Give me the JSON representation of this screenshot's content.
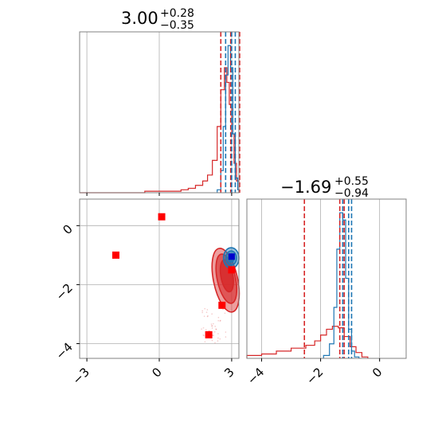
{
  "chart_data": {
    "type": "corner",
    "parameters": [
      {
        "title_value": "3.00",
        "title_plus": "+0.28",
        "title_minus": "−0.35",
        "range": [
          -3.3,
          3.3
        ],
        "tick_labels": [
          "−3",
          "0",
          "3"
        ],
        "tick_values": [
          -3,
          0,
          3
        ]
      },
      {
        "title_value": "−1.69",
        "title_plus": "+0.55",
        "title_minus": "−0.94",
        "range": [
          -4.5,
          0.9
        ],
        "tick_labels": [
          "−4",
          "−2",
          "0"
        ],
        "tick_values": [
          -4,
          -2,
          0
        ]
      }
    ],
    "colors": {
      "red": "#d62728",
      "blue": "#1f77b4",
      "marker": "#ff0000",
      "truth": "#0000cc"
    },
    "histograms": {
      "param1_red": {
        "bins": [
          -3.3,
          -0.6,
          0.9,
          1.2,
          1.5,
          1.8,
          2.0,
          2.2,
          2.4,
          2.55,
          2.7,
          2.8,
          2.9,
          3.0,
          3.1,
          3.2,
          3.3
        ],
        "heights": [
          0,
          0.01,
          0.02,
          0.03,
          0.05,
          0.08,
          0.12,
          0.22,
          0.45,
          0.7,
          0.85,
          0.75,
          0.6,
          0.4,
          0.2,
          0.08
        ]
      },
      "param1_blue": {
        "bins": [
          2.4,
          2.55,
          2.65,
          2.75,
          2.85,
          2.95,
          3.05,
          3.15,
          3.25,
          3.3
        ],
        "heights": [
          0.02,
          0.15,
          0.45,
          0.8,
          1.0,
          0.85,
          0.4,
          0.1,
          0.02
        ]
      },
      "param2_red": {
        "bins": [
          -4.5,
          -4.0,
          -3.5,
          -3.0,
          -2.5,
          -2.2,
          -2.0,
          -1.8,
          -1.6,
          -1.4,
          -1.2,
          -1.0,
          -0.8,
          -0.6,
          -0.4
        ],
        "heights": [
          0.02,
          0.03,
          0.05,
          0.07,
          0.09,
          0.12,
          0.16,
          0.2,
          0.22,
          0.21,
          0.15,
          0.08,
          0.04,
          0.01
        ]
      },
      "param2_blue": {
        "bins": [
          -1.9,
          -1.7,
          -1.55,
          -1.45,
          -1.35,
          -1.25,
          -1.15,
          -1.05,
          -0.95,
          -0.85,
          -0.7
        ],
        "heights": [
          0.02,
          0.1,
          0.35,
          0.75,
          1.0,
          0.95,
          0.55,
          0.2,
          0.05,
          0.01
        ]
      }
    },
    "quantile_lines": {
      "param1_red": [
        2.55,
        2.96,
        3.33
      ],
      "param1_blue": [
        2.75,
        3.0,
        3.15
      ],
      "param2_red": [
        -2.55,
        -1.35,
        -1.2
      ],
      "param2_blue": [
        -1.25,
        -1.05,
        -0.95
      ]
    },
    "scatter_markers_2d": [
      {
        "x": 0.1,
        "y": 0.3
      },
      {
        "x": -1.8,
        "y": -1.0
      },
      {
        "x": 2.05,
        "y": -3.7
      },
      {
        "x": 2.6,
        "y": -2.7
      },
      {
        "x": 3.0,
        "y": -1.5
      }
    ],
    "truth_point_2d": {
      "x": 3.0,
      "y": -1.05
    },
    "red_contour_levels": [
      {
        "cx": 2.75,
        "cy": -1.85,
        "rx": 0.5,
        "ry": 1.1,
        "rot": -12
      },
      {
        "cx": 2.78,
        "cy": -1.8,
        "rx": 0.38,
        "ry": 0.85,
        "rot": -12
      },
      {
        "cx": 2.8,
        "cy": -1.7,
        "rx": 0.25,
        "ry": 0.55,
        "rot": -10
      }
    ],
    "blue_contour_levels": [
      {
        "cx": 2.98,
        "cy": -1.1,
        "rx": 0.32,
        "ry": 0.35,
        "rot": 0
      },
      {
        "cx": 2.98,
        "cy": -1.1,
        "rx": 0.22,
        "ry": 0.24,
        "rot": 0
      },
      {
        "cx": 2.98,
        "cy": -1.1,
        "rx": 0.12,
        "ry": 0.13,
        "rot": 0
      }
    ],
    "grid": true
  }
}
